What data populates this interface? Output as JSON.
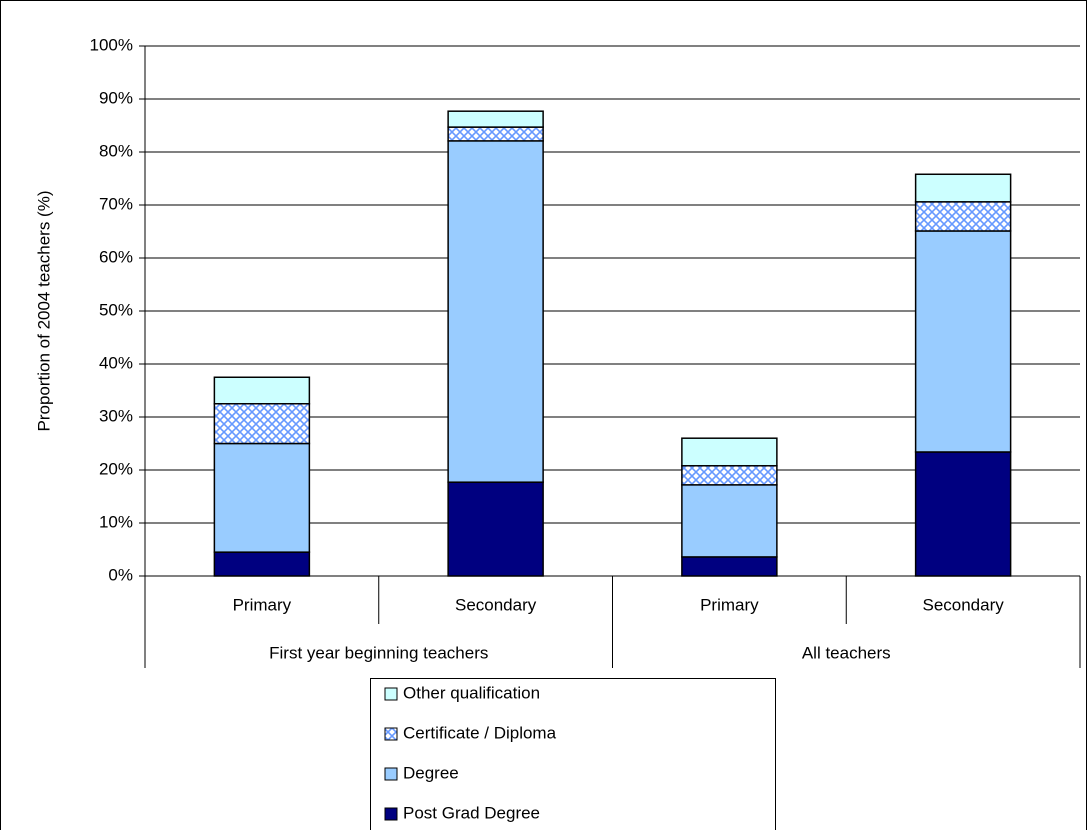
{
  "chart_data": {
    "type": "stacked-bar",
    "y_label": "Proportion of 2004 teachers (%)",
    "categories": [
      "Primary",
      "Secondary",
      "Primary",
      "Secondary"
    ],
    "groups": [
      "First year beginning teachers",
      "All teachers"
    ],
    "series": [
      {
        "name": "Post Grad Degree",
        "color": "#000080",
        "values": [
          4.5,
          17.7,
          3.6,
          23.4
        ]
      },
      {
        "name": "Degree",
        "color": "#99ccff",
        "values": [
          20.5,
          64.4,
          13.6,
          41.7
        ]
      },
      {
        "name": "Certificate / Diploma",
        "color": "#6699ff",
        "pattern": "crosshatch",
        "values": [
          7.5,
          2.6,
          3.6,
          5.5
        ]
      },
      {
        "name": "Other qualification",
        "color": "#ccffff",
        "values": [
          5,
          3,
          5.2,
          5.2
        ]
      }
    ],
    "ylim": [
      0,
      100
    ],
    "yticks": [
      {
        "value": 0,
        "label": "0%"
      },
      {
        "value": 10,
        "label": "10%"
      },
      {
        "value": 20,
        "label": "20%"
      },
      {
        "value": 30,
        "label": "30%"
      },
      {
        "value": 40,
        "label": "40%"
      },
      {
        "value": 50,
        "label": "50%"
      },
      {
        "value": 60,
        "label": "60%"
      },
      {
        "value": 70,
        "label": "70%"
      },
      {
        "value": 80,
        "label": "80%"
      },
      {
        "value": 90,
        "label": "90%"
      },
      {
        "value": 100,
        "label": "100%"
      }
    ],
    "grid": true
  }
}
